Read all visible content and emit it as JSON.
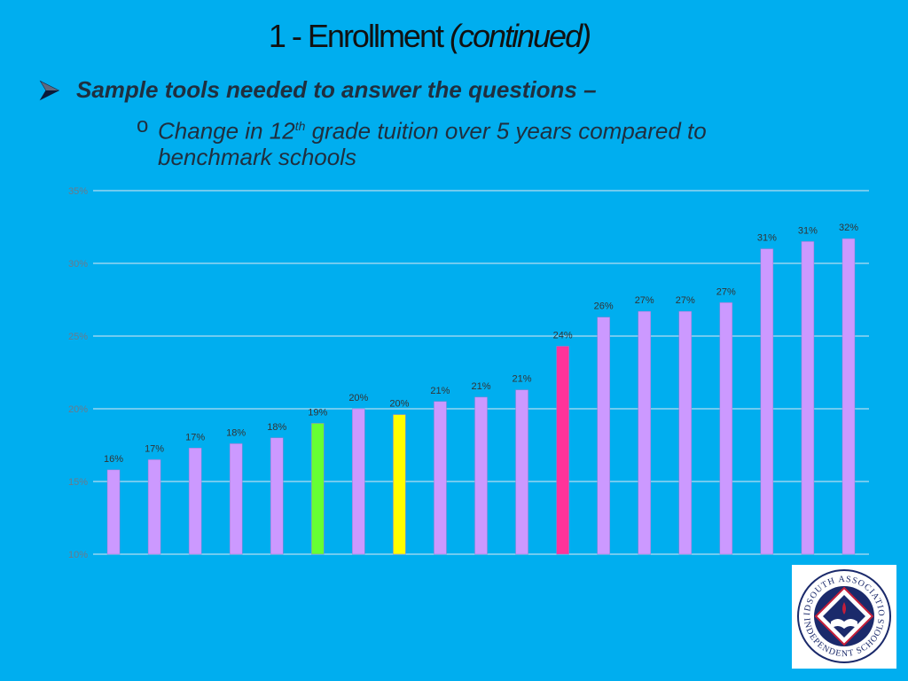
{
  "slide": {
    "title_main": "1 - Enrollment ",
    "title_italic": "(continued)",
    "bullet": "Sample tools needed to answer the questions –",
    "sub_bullet_marker": "o",
    "sub_bullet_pre": "Change in 12",
    "sub_bullet_sup": "th",
    "sub_bullet_post": " grade tuition over 5 years compared to benchmark schools"
  },
  "logo": {
    "top_text": "MIDSOUTH ASSOCIATION",
    "bottom_text": "INDEPENDENT SCHOOLS",
    "colors": {
      "ring": "#1B2A6B",
      "accent": "#C41E3A"
    }
  },
  "chart_data": {
    "type": "bar",
    "title": "",
    "xlabel": "",
    "ylabel": "",
    "ylim": [
      0.1,
      0.35
    ],
    "yticks": [
      "10%",
      "15%",
      "20%",
      "25%",
      "30%",
      "35%"
    ],
    "grid": true,
    "values": [
      0.158,
      0.165,
      0.173,
      0.176,
      0.18,
      0.19,
      0.2,
      0.196,
      0.205,
      0.208,
      0.213,
      0.243,
      0.263,
      0.267,
      0.267,
      0.273,
      0.31,
      0.315,
      0.317
    ],
    "labels": [
      "16%",
      "17%",
      "17%",
      "18%",
      "18%",
      "19%",
      "20%",
      "20%",
      "21%",
      "21%",
      "21%",
      "24%",
      "26%",
      "27%",
      "27%",
      "27%",
      "31%",
      "31%",
      "32%"
    ],
    "colors": [
      "#CC99FF",
      "#CC99FF",
      "#CC99FF",
      "#CC99FF",
      "#CC99FF",
      "#66FF33",
      "#CC99FF",
      "#FFFF00",
      "#CC99FF",
      "#CC99FF",
      "#CC99FF",
      "#FF3399",
      "#CC99FF",
      "#CC99FF",
      "#CC99FF",
      "#CC99FF",
      "#CC99FF",
      "#CC99FF",
      "#CC99FF"
    ]
  }
}
